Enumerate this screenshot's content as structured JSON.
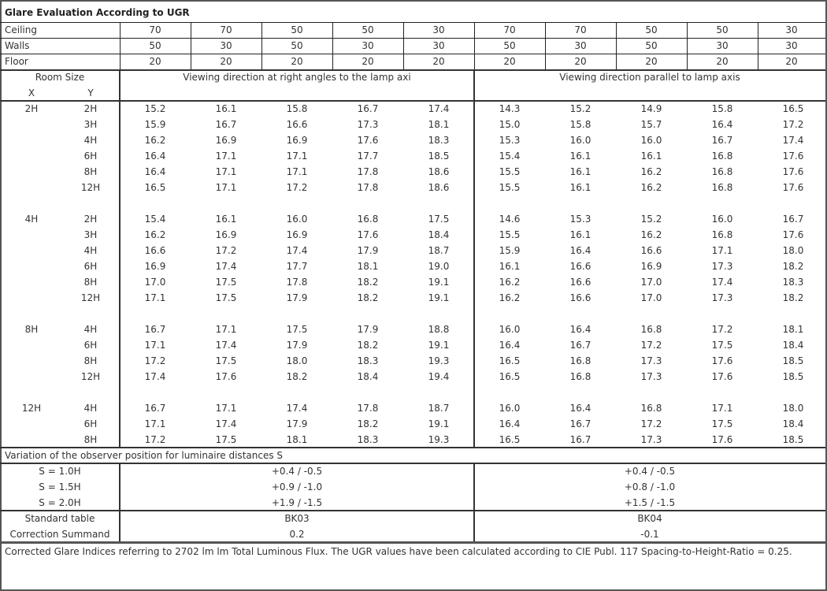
{
  "title": "Glare Evaluation According to UGR",
  "header_rows": [
    {
      "label": "Ceiling",
      "values": [
        "70",
        "70",
        "50",
        "50",
        "30",
        "70",
        "70",
        "50",
        "50",
        "30"
      ]
    },
    {
      "label": "Walls",
      "values": [
        "50",
        "30",
        "50",
        "30",
        "30",
        "50",
        "30",
        "50",
        "30",
        "30"
      ]
    },
    {
      "label": "Floor",
      "values": [
        "20",
        "20",
        "20",
        "20",
        "20",
        "20",
        "20",
        "20",
        "20",
        "20"
      ]
    }
  ],
  "room_size": {
    "label": "Room Size",
    "x": "X",
    "y": "Y"
  },
  "directions": [
    "Viewing direction at right angles to the lamp axi",
    "Viewing direction parallel to lamp axis"
  ],
  "groups": [
    {
      "x": "2H",
      "rows": [
        {
          "y": "2H",
          "perpendicular": [
            "15.2",
            "16.1",
            "15.8",
            "16.7",
            "17.4"
          ],
          "parallel": [
            "14.3",
            "15.2",
            "14.9",
            "15.8",
            "16.5"
          ]
        },
        {
          "y": "3H",
          "perpendicular": [
            "15.9",
            "16.7",
            "16.6",
            "17.3",
            "18.1"
          ],
          "parallel": [
            "15.0",
            "15.8",
            "15.7",
            "16.4",
            "17.2"
          ]
        },
        {
          "y": "4H",
          "perpendicular": [
            "16.2",
            "16.9",
            "16.9",
            "17.6",
            "18.3"
          ],
          "parallel": [
            "15.3",
            "16.0",
            "16.0",
            "16.7",
            "17.4"
          ]
        },
        {
          "y": "6H",
          "perpendicular": [
            "16.4",
            "17.1",
            "17.1",
            "17.7",
            "18.5"
          ],
          "parallel": [
            "15.4",
            "16.1",
            "16.1",
            "16.8",
            "17.6"
          ]
        },
        {
          "y": "8H",
          "perpendicular": [
            "16.4",
            "17.1",
            "17.1",
            "17.8",
            "18.6"
          ],
          "parallel": [
            "15.5",
            "16.1",
            "16.2",
            "16.8",
            "17.6"
          ]
        },
        {
          "y": "12H",
          "perpendicular": [
            "16.5",
            "17.1",
            "17.2",
            "17.8",
            "18.6"
          ],
          "parallel": [
            "15.5",
            "16.1",
            "16.2",
            "16.8",
            "17.6"
          ]
        }
      ]
    },
    {
      "x": "4H",
      "rows": [
        {
          "y": "2H",
          "perpendicular": [
            "15.4",
            "16.1",
            "16.0",
            "16.8",
            "17.5"
          ],
          "parallel": [
            "14.6",
            "15.3",
            "15.2",
            "16.0",
            "16.7"
          ]
        },
        {
          "y": "3H",
          "perpendicular": [
            "16.2",
            "16.9",
            "16.9",
            "17.6",
            "18.4"
          ],
          "parallel": [
            "15.5",
            "16.1",
            "16.2",
            "16.8",
            "17.6"
          ]
        },
        {
          "y": "4H",
          "perpendicular": [
            "16.6",
            "17.2",
            "17.4",
            "17.9",
            "18.7"
          ],
          "parallel": [
            "15.9",
            "16.4",
            "16.6",
            "17.1",
            "18.0"
          ]
        },
        {
          "y": "6H",
          "perpendicular": [
            "16.9",
            "17.4",
            "17.7",
            "18.1",
            "19.0"
          ],
          "parallel": [
            "16.1",
            "16.6",
            "16.9",
            "17.3",
            "18.2"
          ]
        },
        {
          "y": "8H",
          "perpendicular": [
            "17.0",
            "17.5",
            "17.8",
            "18.2",
            "19.1"
          ],
          "parallel": [
            "16.2",
            "16.6",
            "17.0",
            "17.4",
            "18.3"
          ]
        },
        {
          "y": "12H",
          "perpendicular": [
            "17.1",
            "17.5",
            "17.9",
            "18.2",
            "19.1"
          ],
          "parallel": [
            "16.2",
            "16.6",
            "17.0",
            "17.3",
            "18.2"
          ]
        }
      ]
    },
    {
      "x": "8H",
      "rows": [
        {
          "y": "4H",
          "perpendicular": [
            "16.7",
            "17.1",
            "17.5",
            "17.9",
            "18.8"
          ],
          "parallel": [
            "16.0",
            "16.4",
            "16.8",
            "17.2",
            "18.1"
          ]
        },
        {
          "y": "6H",
          "perpendicular": [
            "17.1",
            "17.4",
            "17.9",
            "18.2",
            "19.1"
          ],
          "parallel": [
            "16.4",
            "16.7",
            "17.2",
            "17.5",
            "18.4"
          ]
        },
        {
          "y": "8H",
          "perpendicular": [
            "17.2",
            "17.5",
            "18.0",
            "18.3",
            "19.3"
          ],
          "parallel": [
            "16.5",
            "16.8",
            "17.3",
            "17.6",
            "18.5"
          ]
        },
        {
          "y": "12H",
          "perpendicular": [
            "17.4",
            "17.6",
            "18.2",
            "18.4",
            "19.4"
          ],
          "parallel": [
            "16.5",
            "16.8",
            "17.3",
            "17.6",
            "18.5"
          ]
        }
      ]
    },
    {
      "x": "12H",
      "rows": [
        {
          "y": "4H",
          "perpendicular": [
            "16.7",
            "17.1",
            "17.4",
            "17.8",
            "18.7"
          ],
          "parallel": [
            "16.0",
            "16.4",
            "16.8",
            "17.1",
            "18.0"
          ]
        },
        {
          "y": "6H",
          "perpendicular": [
            "17.1",
            "17.4",
            "17.9",
            "18.2",
            "19.1"
          ],
          "parallel": [
            "16.4",
            "16.7",
            "17.2",
            "17.5",
            "18.4"
          ]
        },
        {
          "y": "8H",
          "perpendicular": [
            "17.2",
            "17.5",
            "18.1",
            "18.3",
            "19.3"
          ],
          "parallel": [
            "16.5",
            "16.7",
            "17.3",
            "17.6",
            "18.5"
          ]
        }
      ]
    }
  ],
  "variation": {
    "label": "Variation of the observer position for luminaire distances S",
    "rows": [
      {
        "s": "S = 1.0H",
        "perpendicular": "+0.4 / -0.5",
        "parallel": "+0.4 / -0.5"
      },
      {
        "s": "S = 1.5H",
        "perpendicular": "+0.9 / -1.0",
        "parallel": "+0.8 / -1.0"
      },
      {
        "s": "S = 2.0H",
        "perpendicular": "+1.9 / -1.5",
        "parallel": "+1.5 / -1.5"
      }
    ]
  },
  "standard_table": {
    "label": "Standard table",
    "perpendicular": "BK03",
    "parallel": "BK04"
  },
  "correction_summand": {
    "label": "Correction Summand",
    "perpendicular": "0.2",
    "parallel": "-0.1"
  },
  "footer": "Corrected Glare Indices referring to 2702 lm lm Total Luminous Flux. The UGR values have been calculated according to CIE Publ. 117    Spacing-to-Height-Ratio = 0.25."
}
